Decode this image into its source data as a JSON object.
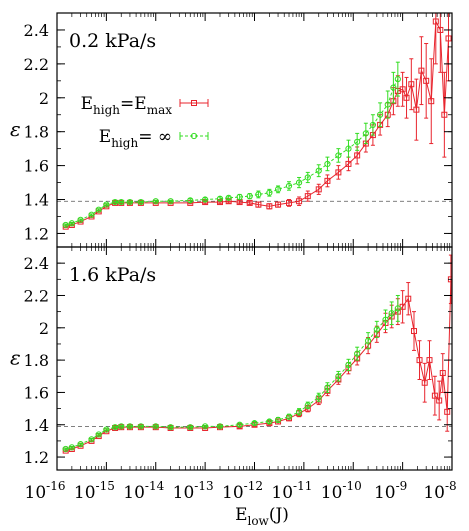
{
  "chart_data": [
    {
      "type": "line",
      "panel_label": "0.2 kPa/s",
      "ylabel": "ε",
      "ylim": [
        1.12,
        2.5
      ],
      "yticks": [
        "1.2",
        "1.4",
        "1.6",
        "1.8",
        "2",
        "2.2",
        "2.4"
      ],
      "xscale": "log",
      "xlim": [
        1e-16,
        1e-08
      ],
      "reference_line": 1.39,
      "legend": {
        "placement": "upper-left",
        "entries": [
          {
            "main": "E",
            "sub": "high",
            "mid": "=E",
            "sub2": "max",
            "color": "#e8242d",
            "marker": "square"
          },
          {
            "main": "E",
            "sub": "high",
            "mid": "= ∞",
            "sub2": "",
            "color": "#33dd22",
            "marker": "circle"
          }
        ]
      },
      "series": [
        {
          "color": "#e8242d",
          "x": [
            1.5e-16,
            2e-16,
            3e-16,
            5e-16,
            7e-16,
            1e-15,
            1.5e-15,
            2e-15,
            3e-15,
            5e-15,
            1e-14,
            2e-14,
            5e-14,
            1e-13,
            2e-13,
            3e-13,
            5e-13,
            8e-13,
            1.2e-12,
            2e-12,
            3e-12,
            5e-12,
            8e-12,
            1.2e-11,
            2e-11,
            3e-11,
            5e-11,
            8e-11,
            1.2e-10,
            1.8e-10,
            2.5e-10,
            3.5e-10,
            5e-10,
            6.5e-10,
            8e-10,
            1e-09,
            1.2e-09,
            1.5e-09,
            1.9e-09,
            2.4e-09,
            3e-09,
            3.8e-09,
            4.7e-09,
            5.8e-09,
            7e-09,
            8.5e-09
          ],
          "y": [
            1.24,
            1.25,
            1.27,
            1.3,
            1.33,
            1.36,
            1.38,
            1.38,
            1.38,
            1.38,
            1.38,
            1.38,
            1.38,
            1.385,
            1.385,
            1.39,
            1.385,
            1.38,
            1.37,
            1.36,
            1.37,
            1.38,
            1.39,
            1.42,
            1.46,
            1.51,
            1.56,
            1.61,
            1.66,
            1.73,
            1.78,
            1.84,
            1.9,
            1.98,
            2.04,
            2.05,
            2.0,
            2.08,
            1.93,
            2.16,
            2.1,
            1.98,
            2.45,
            2.4,
            1.9,
            2.35
          ],
          "err": [
            0.005,
            0.005,
            0.005,
            0.005,
            0.005,
            0.005,
            0.005,
            0.005,
            0.005,
            0.005,
            0.005,
            0.005,
            0.005,
            0.01,
            0.01,
            0.01,
            0.01,
            0.01,
            0.015,
            0.015,
            0.015,
            0.02,
            0.025,
            0.03,
            0.03,
            0.035,
            0.04,
            0.04,
            0.05,
            0.05,
            0.06,
            0.06,
            0.07,
            0.08,
            0.09,
            0.1,
            0.12,
            0.15,
            0.18,
            0.2,
            0.22,
            0.25,
            0.25,
            0.25,
            0.25,
            0.25
          ]
        },
        {
          "color": "#33dd22",
          "x": [
            1.5e-16,
            2e-16,
            3e-16,
            5e-16,
            7e-16,
            1e-15,
            1.5e-15,
            2e-15,
            3e-15,
            5e-15,
            1e-14,
            2e-14,
            5e-14,
            1e-13,
            2e-13,
            3e-13,
            5e-13,
            8e-13,
            1.2e-12,
            2e-12,
            3e-12,
            5e-12,
            8e-12,
            1.2e-11,
            2e-11,
            3e-11,
            5e-11,
            8e-11,
            1.2e-10,
            1.8e-10,
            2.5e-10,
            3.5e-10,
            5e-10,
            6.5e-10,
            8e-10
          ],
          "y": [
            1.25,
            1.26,
            1.28,
            1.31,
            1.34,
            1.37,
            1.385,
            1.385,
            1.385,
            1.385,
            1.39,
            1.39,
            1.395,
            1.4,
            1.405,
            1.41,
            1.415,
            1.42,
            1.43,
            1.44,
            1.46,
            1.48,
            1.5,
            1.53,
            1.57,
            1.61,
            1.66,
            1.7,
            1.74,
            1.79,
            1.84,
            1.9,
            1.96,
            2.06,
            2.11
          ],
          "err": [
            0.005,
            0.005,
            0.005,
            0.005,
            0.005,
            0.005,
            0.005,
            0.005,
            0.005,
            0.005,
            0.005,
            0.005,
            0.01,
            0.01,
            0.01,
            0.01,
            0.015,
            0.015,
            0.02,
            0.02,
            0.02,
            0.025,
            0.03,
            0.03,
            0.035,
            0.04,
            0.04,
            0.05,
            0.05,
            0.06,
            0.06,
            0.07,
            0.08,
            0.09,
            0.1
          ]
        }
      ]
    },
    {
      "type": "line",
      "panel_label": "1.6 kPa/s",
      "ylabel": "ε",
      "ylim": [
        1.12,
        2.5
      ],
      "yticks": [
        "1.2",
        "1.4",
        "1.6",
        "1.8",
        "2",
        "2.2",
        "2.4"
      ],
      "xscale": "log",
      "xlim": [
        1e-16,
        1e-08
      ],
      "xlabel": {
        "main": "E",
        "sub": "low",
        "tail": "(J)"
      },
      "xticks": [
        {
          "b": "10",
          "e": "-16"
        },
        {
          "b": "10",
          "e": "-15"
        },
        {
          "b": "10",
          "e": "-14"
        },
        {
          "b": "10",
          "e": "-13"
        },
        {
          "b": "10",
          "e": "-12"
        },
        {
          "b": "10",
          "e": "-11"
        },
        {
          "b": "10",
          "e": "-10"
        },
        {
          "b": "10",
          "e": "-9"
        },
        {
          "b": "10",
          "e": "-8"
        }
      ],
      "reference_line": 1.39,
      "series": [
        {
          "color": "#e8242d",
          "x": [
            1.5e-16,
            2e-16,
            3e-16,
            5e-16,
            7e-16,
            1e-15,
            1.5e-15,
            2e-15,
            3e-15,
            5e-15,
            1e-14,
            2e-14,
            5e-14,
            1e-13,
            2e-13,
            5e-13,
            1e-12,
            2e-12,
            3e-12,
            5e-12,
            8e-12,
            1.2e-11,
            2e-11,
            3e-11,
            5e-11,
            8e-11,
            1.2e-10,
            2e-10,
            3e-10,
            4.5e-10,
            6e-10,
            8e-10,
            1e-09,
            1.3e-09,
            1.7e-09,
            2.2e-09,
            2.8e-09,
            3.5e-09,
            4.5e-09,
            5.5e-09,
            6.5e-09,
            8e-09,
            9.5e-09
          ],
          "y": [
            1.24,
            1.25,
            1.27,
            1.3,
            1.33,
            1.36,
            1.38,
            1.385,
            1.385,
            1.385,
            1.385,
            1.38,
            1.38,
            1.38,
            1.385,
            1.39,
            1.4,
            1.41,
            1.42,
            1.44,
            1.47,
            1.5,
            1.55,
            1.61,
            1.68,
            1.75,
            1.81,
            1.89,
            1.96,
            2.03,
            2.07,
            2.1,
            2.13,
            2.18,
            1.98,
            1.8,
            1.66,
            1.8,
            1.58,
            1.55,
            1.72,
            1.48,
            2.3
          ],
          "err": [
            0.005,
            0.005,
            0.005,
            0.005,
            0.005,
            0.005,
            0.005,
            0.005,
            0.005,
            0.005,
            0.005,
            0.005,
            0.005,
            0.005,
            0.005,
            0.01,
            0.01,
            0.01,
            0.015,
            0.015,
            0.02,
            0.02,
            0.025,
            0.03,
            0.03,
            0.035,
            0.04,
            0.05,
            0.05,
            0.06,
            0.07,
            0.08,
            0.1,
            0.1,
            0.12,
            0.12,
            0.12,
            0.12,
            0.12,
            0.12,
            0.12,
            0.12,
            0.15
          ]
        },
        {
          "color": "#33dd22",
          "x": [
            1.5e-16,
            2e-16,
            3e-16,
            5e-16,
            7e-16,
            1e-15,
            1.5e-15,
            2e-15,
            3e-15,
            5e-15,
            1e-14,
            2e-14,
            5e-14,
            1e-13,
            2e-13,
            5e-13,
            1e-12,
            2e-12,
            3e-12,
            5e-12,
            8e-12,
            1.2e-11,
            2e-11,
            3e-11,
            5e-11,
            8e-11,
            1.2e-10,
            2e-10,
            3e-10,
            4.5e-10,
            6e-10,
            8e-10
          ],
          "y": [
            1.25,
            1.26,
            1.28,
            1.31,
            1.34,
            1.37,
            1.385,
            1.39,
            1.39,
            1.39,
            1.39,
            1.385,
            1.385,
            1.39,
            1.39,
            1.4,
            1.41,
            1.42,
            1.43,
            1.45,
            1.48,
            1.52,
            1.57,
            1.63,
            1.7,
            1.77,
            1.84,
            1.92,
            1.99,
            2.05,
            2.09,
            2.12
          ],
          "err": [
            0.005,
            0.005,
            0.005,
            0.005,
            0.005,
            0.005,
            0.005,
            0.005,
            0.005,
            0.005,
            0.005,
            0.005,
            0.005,
            0.005,
            0.005,
            0.01,
            0.01,
            0.01,
            0.015,
            0.015,
            0.02,
            0.02,
            0.025,
            0.03,
            0.03,
            0.035,
            0.04,
            0.05,
            0.05,
            0.06,
            0.07,
            0.08
          ]
        }
      ]
    }
  ]
}
